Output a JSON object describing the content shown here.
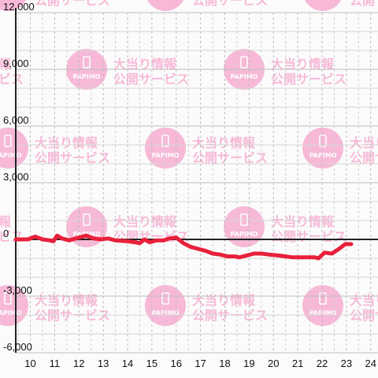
{
  "watermark": {
    "brand": "PAPIMO",
    "line1": "大当り情報",
    "line2": "公開サービス",
    "color": "#f7b6d6"
  },
  "chart_data": {
    "type": "line",
    "title": "",
    "xlabel": "",
    "ylabel": "",
    "xlim": [
      9.4,
      24.3
    ],
    "ylim": [
      -6000,
      12000
    ],
    "x_ticks": [
      10,
      11,
      12,
      13,
      14,
      15,
      16,
      17,
      18,
      19,
      20,
      21,
      22,
      23,
      24
    ],
    "y_ticks": [
      12000,
      9000,
      6000,
      3000,
      0,
      -3000,
      -6000
    ],
    "y_tick_labels": [
      "12,000",
      "9,000",
      "6,000",
      "3,000",
      "0",
      "-3,000",
      "-6,000"
    ],
    "grid": true,
    "line_color": "#e8203a",
    "series": [
      {
        "points": [
          [
            9.4,
            0
          ],
          [
            9.9,
            0
          ],
          [
            10.2,
            150
          ],
          [
            10.5,
            0
          ],
          [
            10.8,
            -50
          ],
          [
            10.95,
            -100
          ],
          [
            11.1,
            200
          ],
          [
            11.3,
            50
          ],
          [
            11.6,
            -50
          ],
          [
            12.0,
            100
          ],
          [
            12.3,
            200
          ],
          [
            12.6,
            50
          ],
          [
            12.9,
            0
          ],
          [
            13.2,
            50
          ],
          [
            13.5,
            -50
          ],
          [
            14.0,
            -100
          ],
          [
            14.3,
            -150
          ],
          [
            14.5,
            -200
          ],
          [
            14.7,
            0
          ],
          [
            14.9,
            -150
          ],
          [
            15.2,
            -50
          ],
          [
            15.5,
            -50
          ],
          [
            15.7,
            50
          ],
          [
            16.0,
            100
          ],
          [
            16.3,
            -200
          ],
          [
            16.6,
            -400
          ],
          [
            16.9,
            -500
          ],
          [
            17.2,
            -600
          ],
          [
            17.5,
            -750
          ],
          [
            17.8,
            -800
          ],
          [
            18.1,
            -900
          ],
          [
            18.4,
            -900
          ],
          [
            18.6,
            -950
          ],
          [
            18.9,
            -850
          ],
          [
            19.2,
            -750
          ],
          [
            19.5,
            -750
          ],
          [
            19.8,
            -800
          ],
          [
            20.2,
            -850
          ],
          [
            20.5,
            -900
          ],
          [
            20.8,
            -950
          ],
          [
            21.1,
            -950
          ],
          [
            21.4,
            -950
          ],
          [
            21.7,
            -950
          ],
          [
            21.85,
            -1000
          ],
          [
            22.1,
            -700
          ],
          [
            22.4,
            -750
          ],
          [
            22.7,
            -500
          ],
          [
            22.95,
            -250
          ],
          [
            23.2,
            -250
          ]
        ]
      }
    ]
  }
}
